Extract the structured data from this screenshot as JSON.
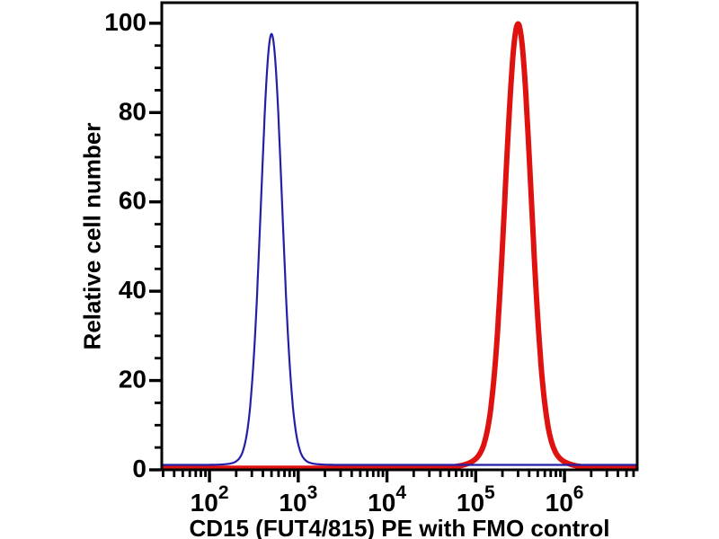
{
  "figure": {
    "background": "#ffffff"
  },
  "chart_data": {
    "type": "line",
    "subtype": "flow-cytometry-histogram-overlay",
    "title": "",
    "xlabel": "CD15 (FUT4/815) PE with FMO control",
    "ylabel": "Relative cell number",
    "grid": false,
    "legend": "none",
    "x_scale": "log10",
    "x_domain": [
      29,
      6600000
    ],
    "x_major_ticks": [
      100,
      1000,
      10000,
      100000,
      1000000
    ],
    "x_tick_labels": [
      {
        "base": "10",
        "exp": "2"
      },
      {
        "base": "10",
        "exp": "3"
      },
      {
        "base": "10",
        "exp": "4"
      },
      {
        "base": "10",
        "exp": "5"
      },
      {
        "base": "10",
        "exp": "6"
      }
    ],
    "x_minor_ticks": "log-decade-2-to-9",
    "y_domain": [
      0,
      104.6
    ],
    "y_major_ticks": [
      100,
      80,
      60,
      40,
      20,
      0
    ],
    "y_minor_step": 5,
    "axis_color": "#000000",
    "series": [
      {
        "name": "CD15 (FUT4/815) PE",
        "color": "#df1212",
        "line_width": 6,
        "baseline": 0.35,
        "peaks": [
          {
            "center_x": 300000,
            "height": 93.5,
            "sigma_log10": 0.145
          },
          {
            "center_x": 300000,
            "height": 6.0,
            "sigma_log10": 0.3
          }
        ],
        "peak_summary": {
          "mode_x": 300000,
          "mode_y": 100,
          "foot_left_x": 65000,
          "foot_right_x": 1400000
        }
      },
      {
        "name": "FMO control",
        "color": "#2420a6",
        "line_width": 2.2,
        "baseline": 1.1,
        "peaks": [
          {
            "center_x": 500,
            "height": 94.0,
            "sigma_log10": 0.118
          },
          {
            "center_x": 500,
            "height": 2.5,
            "sigma_log10": 0.22
          }
        ],
        "peak_summary": {
          "mode_x": 500,
          "mode_y": 97.5,
          "foot_left_x": 180,
          "foot_right_x": 1350
        }
      }
    ]
  }
}
